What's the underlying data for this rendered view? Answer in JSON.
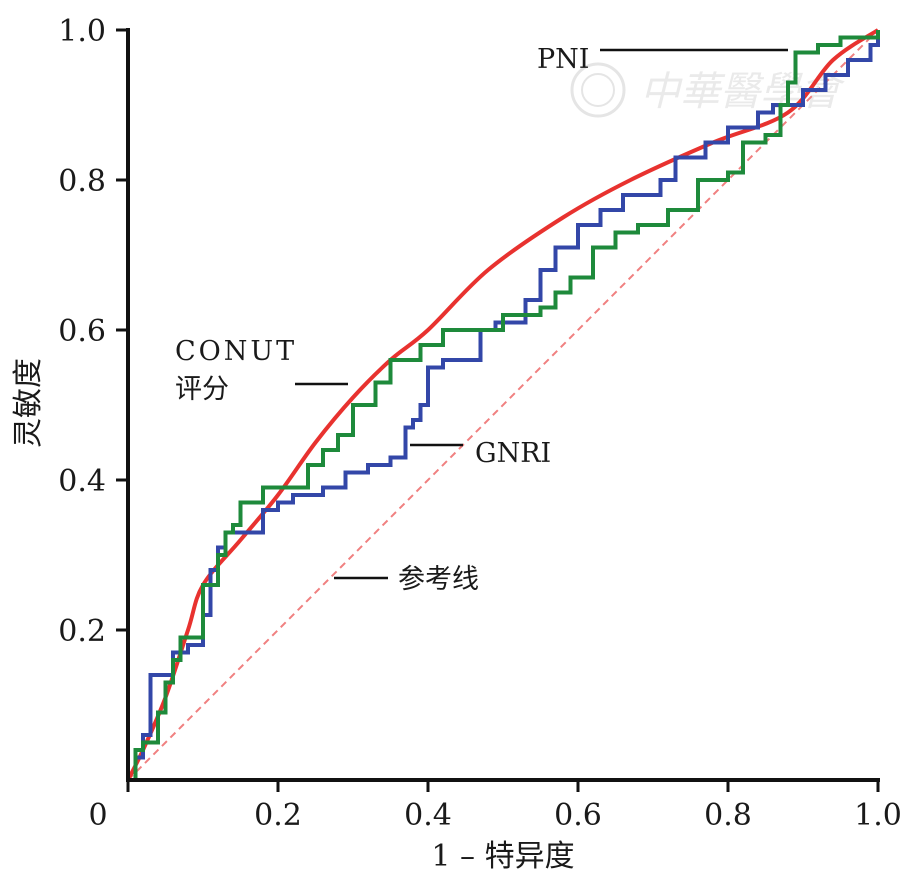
{
  "chart_data": {
    "type": "line",
    "title": "",
    "xlabel": "1 – 特异度",
    "ylabel": "灵敏度",
    "xlim": [
      0,
      1
    ],
    "ylim": [
      0,
      1
    ],
    "x_ticks": [
      "0",
      "0.2",
      "0.4",
      "0.6",
      "0.8",
      "1.0"
    ],
    "y_ticks": [
      "0.2",
      "0.4",
      "0.6",
      "0.8",
      "1.0"
    ],
    "x_tick_values": [
      0,
      0.2,
      0.4,
      0.6,
      0.8,
      1.0
    ],
    "y_tick_values": [
      0.2,
      0.4,
      0.6,
      0.8,
      1.0
    ],
    "grid": false,
    "legend": "none (inline annotations)",
    "series": [
      {
        "name": "CONUT评分",
        "color": "#e8322f",
        "style": "smooth",
        "points": [
          [
            0,
            0
          ],
          [
            0.02,
            0.04
          ],
          [
            0.05,
            0.11
          ],
          [
            0.08,
            0.2
          ],
          [
            0.1,
            0.26
          ],
          [
            0.15,
            0.32
          ],
          [
            0.2,
            0.38
          ],
          [
            0.25,
            0.45
          ],
          [
            0.3,
            0.51
          ],
          [
            0.35,
            0.56
          ],
          [
            0.4,
            0.6
          ],
          [
            0.48,
            0.68
          ],
          [
            0.58,
            0.75
          ],
          [
            0.67,
            0.8
          ],
          [
            0.78,
            0.85
          ],
          [
            0.88,
            0.89
          ],
          [
            0.94,
            0.96
          ],
          [
            1,
            1
          ]
        ]
      },
      {
        "name": "GNRI",
        "color": "#3347a8",
        "style": "step",
        "points": [
          [
            0,
            0
          ],
          [
            0.01,
            0.03
          ],
          [
            0.02,
            0.06
          ],
          [
            0.03,
            0.09
          ],
          [
            0.03,
            0.14
          ],
          [
            0.06,
            0.17
          ],
          [
            0.08,
            0.18
          ],
          [
            0.1,
            0.22
          ],
          [
            0.11,
            0.28
          ],
          [
            0.12,
            0.31
          ],
          [
            0.13,
            0.33
          ],
          [
            0.18,
            0.36
          ],
          [
            0.2,
            0.37
          ],
          [
            0.22,
            0.38
          ],
          [
            0.26,
            0.39
          ],
          [
            0.29,
            0.41
          ],
          [
            0.32,
            0.42
          ],
          [
            0.35,
            0.43
          ],
          [
            0.37,
            0.47
          ],
          [
            0.38,
            0.48
          ],
          [
            0.39,
            0.5
          ],
          [
            0.4,
            0.55
          ],
          [
            0.42,
            0.56
          ],
          [
            0.47,
            0.6
          ],
          [
            0.49,
            0.61
          ],
          [
            0.53,
            0.64
          ],
          [
            0.55,
            0.68
          ],
          [
            0.57,
            0.71
          ],
          [
            0.6,
            0.74
          ],
          [
            0.63,
            0.76
          ],
          [
            0.66,
            0.78
          ],
          [
            0.71,
            0.8
          ],
          [
            0.73,
            0.83
          ],
          [
            0.77,
            0.85
          ],
          [
            0.8,
            0.87
          ],
          [
            0.84,
            0.89
          ],
          [
            0.86,
            0.9
          ],
          [
            0.9,
            0.92
          ],
          [
            0.93,
            0.94
          ],
          [
            0.96,
            0.96
          ],
          [
            0.99,
            0.98
          ],
          [
            1,
            1
          ]
        ]
      },
      {
        "name": "PNI",
        "color": "#1e8a3b",
        "style": "step",
        "points": [
          [
            0,
            0
          ],
          [
            0.01,
            0.04
          ],
          [
            0.02,
            0.05
          ],
          [
            0.04,
            0.09
          ],
          [
            0.05,
            0.13
          ],
          [
            0.06,
            0.16
          ],
          [
            0.07,
            0.19
          ],
          [
            0.1,
            0.26
          ],
          [
            0.12,
            0.3
          ],
          [
            0.13,
            0.33
          ],
          [
            0.14,
            0.34
          ],
          [
            0.15,
            0.37
          ],
          [
            0.18,
            0.39
          ],
          [
            0.2,
            0.39
          ],
          [
            0.24,
            0.42
          ],
          [
            0.26,
            0.44
          ],
          [
            0.28,
            0.46
          ],
          [
            0.3,
            0.5
          ],
          [
            0.33,
            0.53
          ],
          [
            0.35,
            0.56
          ],
          [
            0.39,
            0.58
          ],
          [
            0.42,
            0.6
          ],
          [
            0.48,
            0.6
          ],
          [
            0.5,
            0.62
          ],
          [
            0.55,
            0.63
          ],
          [
            0.57,
            0.65
          ],
          [
            0.59,
            0.67
          ],
          [
            0.62,
            0.71
          ],
          [
            0.65,
            0.73
          ],
          [
            0.68,
            0.74
          ],
          [
            0.72,
            0.76
          ],
          [
            0.76,
            0.8
          ],
          [
            0.8,
            0.81
          ],
          [
            0.82,
            0.85
          ],
          [
            0.85,
            0.86
          ],
          [
            0.87,
            0.9
          ],
          [
            0.88,
            0.93
          ],
          [
            0.89,
            0.97
          ],
          [
            0.92,
            0.98
          ],
          [
            0.95,
            0.99
          ],
          [
            1,
            0.99
          ],
          [
            1,
            1
          ]
        ]
      },
      {
        "name": "参考线",
        "color": "#f08080",
        "style": "dashed",
        "points": [
          [
            0,
            0
          ],
          [
            1,
            1
          ]
        ]
      }
    ],
    "annotations": [
      {
        "text": "PNI"
      },
      {
        "text": "CONUT"
      },
      {
        "text": "评分"
      },
      {
        "text": "GNRI"
      },
      {
        "text": "参考线"
      }
    ],
    "watermark": "中華醫學會"
  }
}
